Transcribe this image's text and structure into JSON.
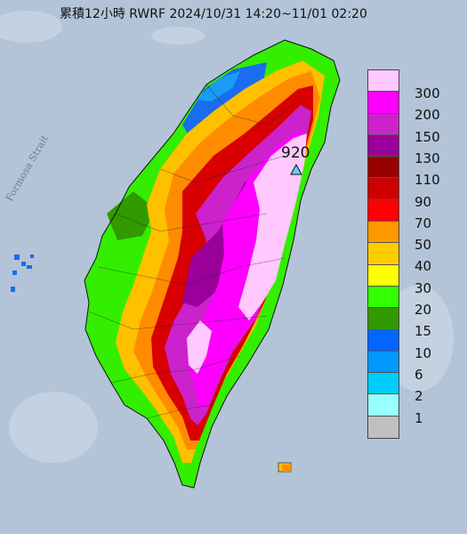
{
  "title": "累積12小時 RWRF 2024/10/31 14:20~11/01 02:20",
  "map": {
    "water_label": "Formosa Strait",
    "max_value": "920",
    "max_marker": "triangle-marker"
  },
  "legend": {
    "items": [
      {
        "label": "300",
        "color": "#ffc8ff"
      },
      {
        "label": "200",
        "color": "#ff00ff"
      },
      {
        "label": "150",
        "color": "#cc22cc"
      },
      {
        "label": "130",
        "color": "#990099"
      },
      {
        "label": "110",
        "color": "#990000"
      },
      {
        "label": "90",
        "color": "#cc0000"
      },
      {
        "label": "70",
        "color": "#ff0000"
      },
      {
        "label": "50",
        "color": "#ff9900"
      },
      {
        "label": "40",
        "color": "#ffcc00"
      },
      {
        "label": "30",
        "color": "#ffff00"
      },
      {
        "label": "20",
        "color": "#33ff00"
      },
      {
        "label": "15",
        "color": "#339900"
      },
      {
        "label": "10",
        "color": "#0066ff"
      },
      {
        "label": "6",
        "color": "#0099ff"
      },
      {
        "label": "2",
        "color": "#00ccff"
      },
      {
        "label": "1",
        "color": "#99ffff"
      },
      {
        "label": "",
        "color": "#c0c0c0"
      }
    ]
  }
}
